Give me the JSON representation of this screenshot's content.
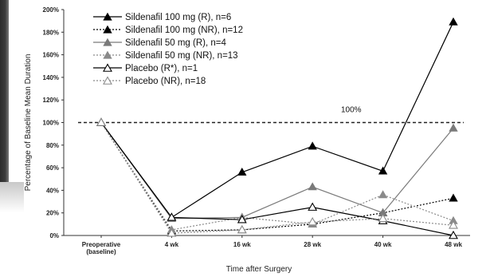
{
  "chart_data": {
    "type": "line",
    "categories": [
      "Preoperative (baseline)",
      "4 wk",
      "16 wk",
      "28 wk",
      "40 wk",
      "48 wk"
    ],
    "category_lines": [
      [
        "Preoperative",
        "(baseline)"
      ],
      [
        "4 wk"
      ],
      [
        "16 wk"
      ],
      [
        "28 wk"
      ],
      [
        "40 wk"
      ],
      [
        "48 wk"
      ]
    ],
    "xlabel": "Time after Surgery",
    "ylabel": "Percentage of Baseline Mean Duration",
    "ylim": [
      0,
      200
    ],
    "yticks": [
      0,
      20,
      40,
      60,
      80,
      100,
      120,
      140,
      160,
      180,
      200
    ],
    "ytick_labels": [
      "0%",
      "20%",
      "40%",
      "60%",
      "80%",
      "100%",
      "120%",
      "140%",
      "160%",
      "180%",
      "200%"
    ],
    "reference_line": {
      "value": 100,
      "label": "100%",
      "style": "dashed"
    },
    "legend_position": "top-left inside plot",
    "series": [
      {
        "name": "Sildenafil 100 mg (R), n=6",
        "values": [
          100,
          16,
          56,
          79,
          57,
          189
        ],
        "marker": "triangle-filled",
        "dash": "solid",
        "color": "#000000"
      },
      {
        "name": "Sildenafil 100 mg (NR), n=12",
        "values": [
          100,
          4,
          5,
          10,
          20,
          33
        ],
        "marker": "triangle-filled",
        "dash": "dotted",
        "color": "#000000"
      },
      {
        "name": "Sildenafil 50 mg (R), n=4",
        "values": [
          100,
          15,
          16,
          43,
          20,
          95
        ],
        "marker": "triangle-filled",
        "dash": "solid",
        "color": "#7a7a7a"
      },
      {
        "name": "Sildenafil 50 mg (NR), n=13",
        "values": [
          100,
          5,
          16,
          10,
          36,
          13
        ],
        "marker": "triangle-filled",
        "dash": "dotted",
        "color": "#8a8a8a"
      },
      {
        "name": "Placebo (R*), n=1",
        "values": [
          100,
          16,
          14,
          25,
          13,
          0
        ],
        "marker": "triangle-open",
        "dash": "solid",
        "color": "#000000"
      },
      {
        "name": "Placebo (NR), n=18",
        "values": [
          100,
          2,
          5,
          12,
          15,
          9
        ],
        "marker": "triangle-open",
        "dash": "dotted",
        "color": "#8a8a8a"
      }
    ]
  }
}
